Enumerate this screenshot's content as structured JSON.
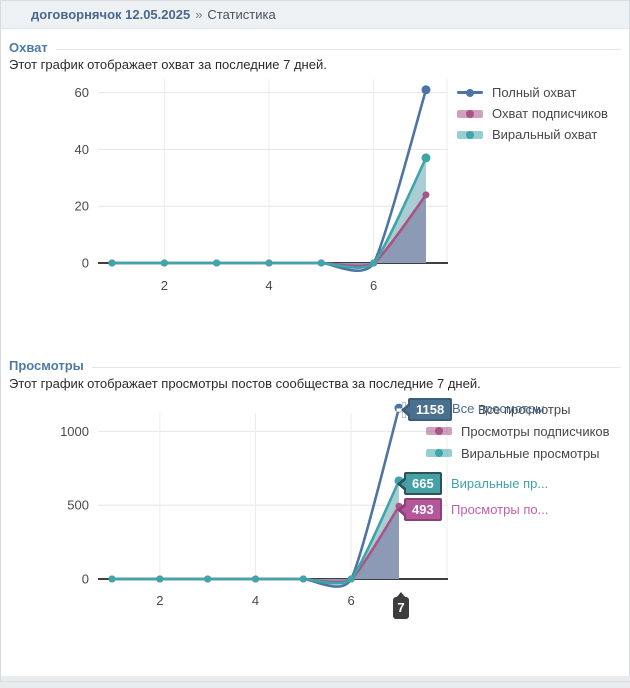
{
  "breadcrumb": {
    "community_link": "договорнячок 12.05.2025",
    "separator": "»",
    "current_page": "Статистика"
  },
  "reach": {
    "section_title": "Охват",
    "description": "Этот график отображает охват за последние 7 дней."
  },
  "views": {
    "section_title": "Просмотры",
    "description": "Этот график отображает просмотры постов сообщества за последние 7 дней.",
    "tooltips": {
      "all_views": {
        "value": "1158",
        "label": "Все просмотры"
      },
      "viral_views": {
        "value": "665",
        "label": "Виральные пр..."
      },
      "subscriber_views": {
        "value": "493",
        "label": "Просмотры по..."
      },
      "x_axis": {
        "value": "7"
      }
    }
  },
  "chart_data": [
    {
      "type": "area",
      "title": "Охват",
      "x": [
        1,
        2,
        3,
        4,
        5,
        6,
        7
      ],
      "x_tick_labels": [
        2,
        4,
        6
      ],
      "y_ticks": [
        0,
        20,
        40,
        60
      ],
      "ylim": [
        0,
        65
      ],
      "grid": true,
      "legend_position": "right",
      "series": [
        {
          "name": "Полный охват",
          "color": "#4d74a3",
          "fill": "none",
          "values": [
            0,
            0,
            0,
            0,
            0,
            0,
            61
          ]
        },
        {
          "name": "Охват подписчиков",
          "color": "#aa5486",
          "fill": "#8d9ab6",
          "values": [
            0,
            0,
            0,
            0,
            0,
            0,
            24
          ]
        },
        {
          "name": "Виральный охват",
          "color": "#3fa5ab",
          "fill": "#a8ced3",
          "values": [
            0,
            0,
            0,
            0,
            0,
            0,
            37
          ]
        }
      ]
    },
    {
      "type": "area",
      "title": "Просмотры",
      "x": [
        1,
        2,
        3,
        4,
        5,
        6,
        7
      ],
      "x_tick_labels": [
        2,
        4,
        6
      ],
      "y_ticks": [
        0,
        500,
        1000
      ],
      "ylim": [
        0,
        1170
      ],
      "grid": true,
      "legend_position": "right",
      "series": [
        {
          "name": "Все просмотры",
          "color": "#4d74a3",
          "fill": "none",
          "values": [
            0,
            0,
            0,
            0,
            0,
            0,
            1158
          ]
        },
        {
          "name": "Просмотры подписчиков",
          "color": "#aa5486",
          "fill": "#8d9ab6",
          "values": [
            0,
            0,
            0,
            0,
            0,
            0,
            493
          ]
        },
        {
          "name": "Виральные просмотры",
          "color": "#3fa5ab",
          "fill": "#a8ced3",
          "values": [
            0,
            0,
            0,
            0,
            0,
            0,
            665
          ]
        }
      ]
    }
  ],
  "colors": {
    "flag_blue_bg": "#4a7090",
    "flag_blue_border": "#3c5d79",
    "flag_teal_bg": "#47a0a6",
    "flag_teal_border": "#2f5158",
    "flag_pink_bg": "#b4579b",
    "flag_pink_border": "#8d4078",
    "axis_badge_bg": "#3d3d3d",
    "label_blue": "#4a6e93",
    "label_teal": "#3fa3a9",
    "label_pink": "#c45fa7",
    "series_blue": "#4d74a3",
    "series_pink": "#aa5486",
    "series_teal": "#3fa5ab"
  }
}
